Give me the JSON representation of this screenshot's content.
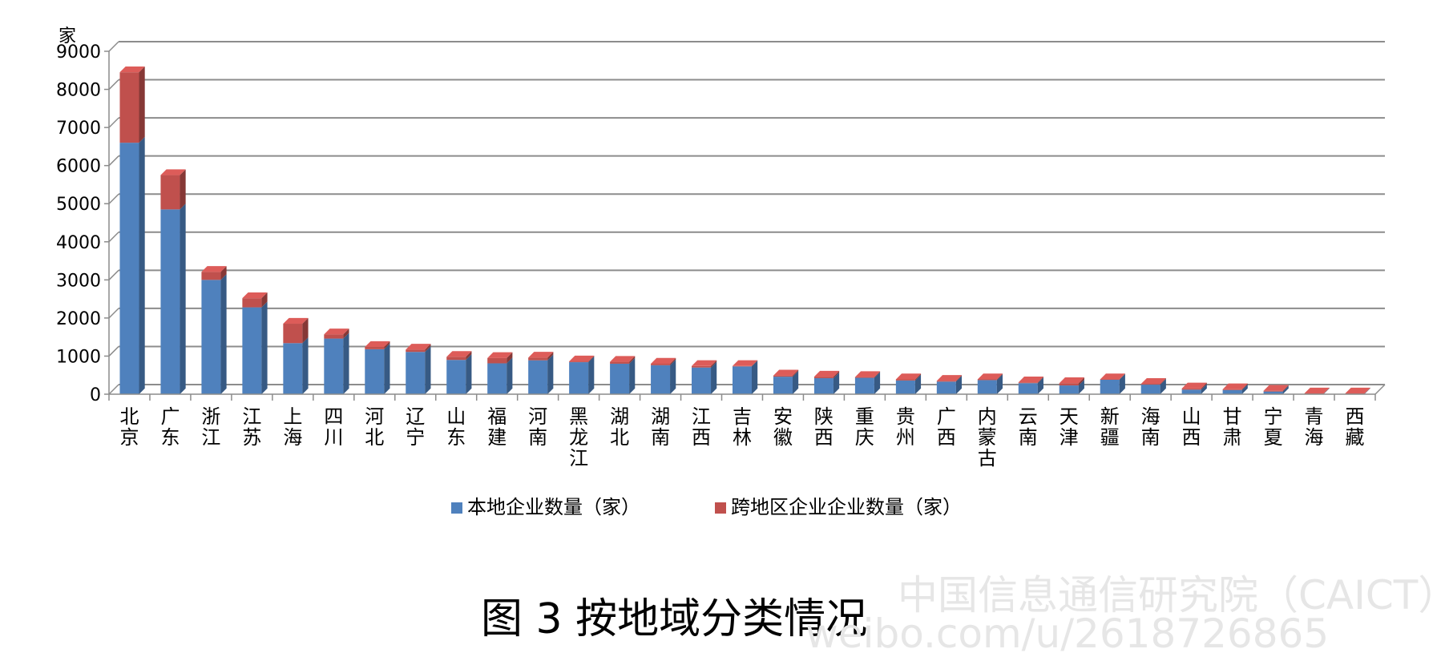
{
  "chart_data": {
    "type": "bar",
    "stacked": true,
    "ylabel": "家",
    "ylim": [
      0,
      9000
    ],
    "yticks": [
      "0",
      "1000",
      "2000",
      "3000",
      "4000",
      "5000",
      "6000",
      "7000",
      "8000",
      "9000"
    ],
    "grid": true,
    "legend_position": "bottom",
    "categories": [
      "北京",
      "广东",
      "浙江",
      "江苏",
      "上海",
      "四川",
      "河北",
      "辽宁",
      "山东",
      "福建",
      "河南",
      "黑龙江",
      "湖北",
      "湖南",
      "江西",
      "吉林",
      "安徽",
      "陕西",
      "重庆",
      "贵州",
      "广西",
      "内蒙古",
      "云南",
      "天津",
      "新疆",
      "海南",
      "山西",
      "甘肃",
      "宁夏",
      "青海",
      "西藏"
    ],
    "series": [
      {
        "name": "本地企业数量（家）",
        "color": "#4f81bd",
        "values": [
          6600,
          4850,
          3000,
          2280,
          1340,
          1460,
          1180,
          1110,
          900,
          810,
          890,
          840,
          800,
          760,
          700,
          730,
          460,
          420,
          430,
          360,
          330,
          370,
          290,
          230,
          380,
          250,
          120,
          110,
          70,
          10,
          10
        ]
      },
      {
        "name": "跨地区企业企业数量（家）",
        "color": "#c0504d",
        "values": [
          1850,
          900,
          210,
          240,
          510,
          110,
          60,
          60,
          80,
          140,
          70,
          20,
          50,
          40,
          40,
          10,
          30,
          40,
          20,
          30,
          20,
          20,
          20,
          60,
          10,
          20,
          30,
          20,
          20,
          10,
          10
        ]
      }
    ]
  },
  "caption": "图 3  按地域分类情况",
  "watermark": {
    "line1": "中国信息通信研究院（CAICT）",
    "line2": "weibo.com/u/2618726865"
  }
}
